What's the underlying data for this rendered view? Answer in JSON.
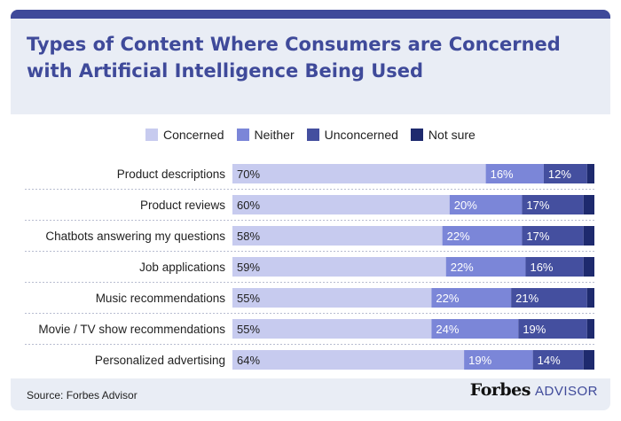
{
  "header": {
    "title_line1": "Types of Content Where Consumers are Concerned",
    "title_line2": "with Artificial Intelligence Being Used"
  },
  "colors": {
    "accent": "#3f4a9a",
    "concerned": "#c7cbef",
    "neither": "#7b86d8",
    "unconcerned": "#444f9f",
    "not_sure": "#1e2a6e"
  },
  "legend": {
    "concerned": "Concerned",
    "neither": "Neither",
    "unconcerned": "Unconcerned",
    "not_sure": "Not sure"
  },
  "chart_data": {
    "type": "bar",
    "orientation": "horizontal",
    "stacked": true,
    "categories": [
      "Product descriptions",
      "Product reviews",
      "Chatbots answering my questions",
      "Job applications",
      "Music recommendations",
      "Movie / TV show recommendations",
      "Personalized advertising"
    ],
    "series": [
      {
        "name": "Concerned",
        "values": [
          70,
          60,
          58,
          59,
          55,
          55,
          64
        ],
        "labels": [
          "70%",
          "60%",
          "58%",
          "59%",
          "55%",
          "55%",
          "64%"
        ]
      },
      {
        "name": "Neither",
        "values": [
          16,
          20,
          22,
          22,
          22,
          24,
          19
        ],
        "labels": [
          "16%",
          "20%",
          "22%",
          "22%",
          "22%",
          "24%",
          "19%"
        ]
      },
      {
        "name": "Unconcerned",
        "values": [
          12,
          17,
          17,
          16,
          21,
          19,
          14
        ],
        "labels": [
          "12%",
          "17%",
          "17%",
          "16%",
          "21%",
          "19%",
          "14%"
        ]
      },
      {
        "name": "Not sure",
        "values": [
          2,
          3,
          3,
          3,
          2,
          2,
          3
        ]
      }
    ],
    "xlim": [
      0,
      100
    ],
    "legend_position": "top",
    "grid": false
  },
  "footer": {
    "source": "Source: Forbes Advisor",
    "brand_name": "Forbes",
    "brand_sub": "ADVISOR"
  }
}
